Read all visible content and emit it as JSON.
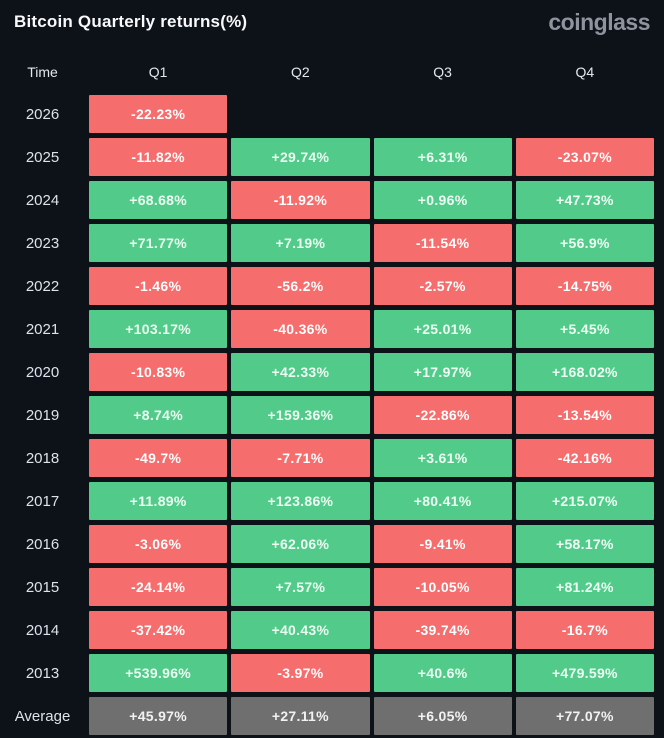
{
  "header": {
    "title": "Bitcoin Quarterly returns(%)",
    "logo": "coinglass"
  },
  "colors": {
    "positive": "#52cb8a",
    "negative": "#f56d6d",
    "average": "#6f6f6f",
    "background": "#0d1118",
    "logo_gray": "#8e939d"
  },
  "table": {
    "columns": [
      "Time",
      "Q1",
      "Q2",
      "Q3",
      "Q4"
    ],
    "rows": [
      {
        "label": "2026",
        "cells": [
          {
            "text": "-22.23%",
            "type": "negative"
          },
          {
            "text": "",
            "type": "empty"
          },
          {
            "text": "",
            "type": "empty"
          },
          {
            "text": "",
            "type": "empty"
          }
        ]
      },
      {
        "label": "2025",
        "cells": [
          {
            "text": "-11.82%",
            "type": "negative"
          },
          {
            "text": "+29.74%",
            "type": "positive"
          },
          {
            "text": "+6.31%",
            "type": "positive"
          },
          {
            "text": "-23.07%",
            "type": "negative"
          }
        ]
      },
      {
        "label": "2024",
        "cells": [
          {
            "text": "+68.68%",
            "type": "positive"
          },
          {
            "text": "-11.92%",
            "type": "negative"
          },
          {
            "text": "+0.96%",
            "type": "positive"
          },
          {
            "text": "+47.73%",
            "type": "positive"
          }
        ]
      },
      {
        "label": "2023",
        "cells": [
          {
            "text": "+71.77%",
            "type": "positive"
          },
          {
            "text": "+7.19%",
            "type": "positive"
          },
          {
            "text": "-11.54%",
            "type": "negative"
          },
          {
            "text": "+56.9%",
            "type": "positive"
          }
        ]
      },
      {
        "label": "2022",
        "cells": [
          {
            "text": "-1.46%",
            "type": "negative"
          },
          {
            "text": "-56.2%",
            "type": "negative"
          },
          {
            "text": "-2.57%",
            "type": "negative"
          },
          {
            "text": "-14.75%",
            "type": "negative"
          }
        ]
      },
      {
        "label": "2021",
        "cells": [
          {
            "text": "+103.17%",
            "type": "positive"
          },
          {
            "text": "-40.36%",
            "type": "negative"
          },
          {
            "text": "+25.01%",
            "type": "positive"
          },
          {
            "text": "+5.45%",
            "type": "positive"
          }
        ]
      },
      {
        "label": "2020",
        "cells": [
          {
            "text": "-10.83%",
            "type": "negative"
          },
          {
            "text": "+42.33%",
            "type": "positive"
          },
          {
            "text": "+17.97%",
            "type": "positive"
          },
          {
            "text": "+168.02%",
            "type": "positive"
          }
        ]
      },
      {
        "label": "2019",
        "cells": [
          {
            "text": "+8.74%",
            "type": "positive"
          },
          {
            "text": "+159.36%",
            "type": "positive"
          },
          {
            "text": "-22.86%",
            "type": "negative"
          },
          {
            "text": "-13.54%",
            "type": "negative"
          }
        ]
      },
      {
        "label": "2018",
        "cells": [
          {
            "text": "-49.7%",
            "type": "negative"
          },
          {
            "text": "-7.71%",
            "type": "negative"
          },
          {
            "text": "+3.61%",
            "type": "positive"
          },
          {
            "text": "-42.16%",
            "type": "negative"
          }
        ]
      },
      {
        "label": "2017",
        "cells": [
          {
            "text": "+11.89%",
            "type": "positive"
          },
          {
            "text": "+123.86%",
            "type": "positive"
          },
          {
            "text": "+80.41%",
            "type": "positive"
          },
          {
            "text": "+215.07%",
            "type": "positive"
          }
        ]
      },
      {
        "label": "2016",
        "cells": [
          {
            "text": "-3.06%",
            "type": "negative"
          },
          {
            "text": "+62.06%",
            "type": "positive"
          },
          {
            "text": "-9.41%",
            "type": "negative"
          },
          {
            "text": "+58.17%",
            "type": "positive"
          }
        ]
      },
      {
        "label": "2015",
        "cells": [
          {
            "text": "-24.14%",
            "type": "negative"
          },
          {
            "text": "+7.57%",
            "type": "positive"
          },
          {
            "text": "-10.05%",
            "type": "negative"
          },
          {
            "text": "+81.24%",
            "type": "positive"
          }
        ]
      },
      {
        "label": "2014",
        "cells": [
          {
            "text": "-37.42%",
            "type": "negative"
          },
          {
            "text": "+40.43%",
            "type": "positive"
          },
          {
            "text": "-39.74%",
            "type": "negative"
          },
          {
            "text": "-16.7%",
            "type": "negative"
          }
        ]
      },
      {
        "label": "2013",
        "cells": [
          {
            "text": "+539.96%",
            "type": "positive"
          },
          {
            "text": "-3.97%",
            "type": "negative"
          },
          {
            "text": "+40.6%",
            "type": "positive"
          },
          {
            "text": "+479.59%",
            "type": "positive"
          }
        ]
      },
      {
        "label": "Average",
        "cells": [
          {
            "text": "+45.97%",
            "type": "average"
          },
          {
            "text": "+27.11%",
            "type": "average"
          },
          {
            "text": "+6.05%",
            "type": "average"
          },
          {
            "text": "+77.07%",
            "type": "average"
          }
        ]
      }
    ]
  },
  "chart_data": {
    "type": "heatmap",
    "title": "Bitcoin Quarterly returns(%)",
    "source_label": "coinglass",
    "columns": [
      "Q1",
      "Q2",
      "Q3",
      "Q4"
    ],
    "rows": [
      "2026",
      "2025",
      "2024",
      "2023",
      "2022",
      "2021",
      "2020",
      "2019",
      "2018",
      "2017",
      "2016",
      "2015",
      "2014",
      "2013",
      "Average"
    ],
    "unit": "%",
    "values": [
      [
        -22.23,
        null,
        null,
        null
      ],
      [
        -11.82,
        29.74,
        6.31,
        -23.07
      ],
      [
        68.68,
        -11.92,
        0.96,
        47.73
      ],
      [
        71.77,
        7.19,
        -11.54,
        56.9
      ],
      [
        -1.46,
        -56.2,
        -2.57,
        -14.75
      ],
      [
        103.17,
        -40.36,
        25.01,
        5.45
      ],
      [
        -10.83,
        42.33,
        17.97,
        168.02
      ],
      [
        8.74,
        159.36,
        -22.86,
        -13.54
      ],
      [
        -49.7,
        -7.71,
        3.61,
        -42.16
      ],
      [
        11.89,
        123.86,
        80.41,
        215.07
      ],
      [
        -3.06,
        62.06,
        -9.41,
        58.17
      ],
      [
        -24.14,
        7.57,
        -10.05,
        81.24
      ],
      [
        -37.42,
        40.43,
        -39.74,
        -16.7
      ],
      [
        539.96,
        -3.97,
        40.6,
        479.59
      ],
      [
        45.97,
        27.11,
        6.05,
        77.07
      ]
    ],
    "color_coding": "green = positive return, red = negative return, gray = Average row, blank = no data",
    "legend_position": "none",
    "grid": false
  }
}
